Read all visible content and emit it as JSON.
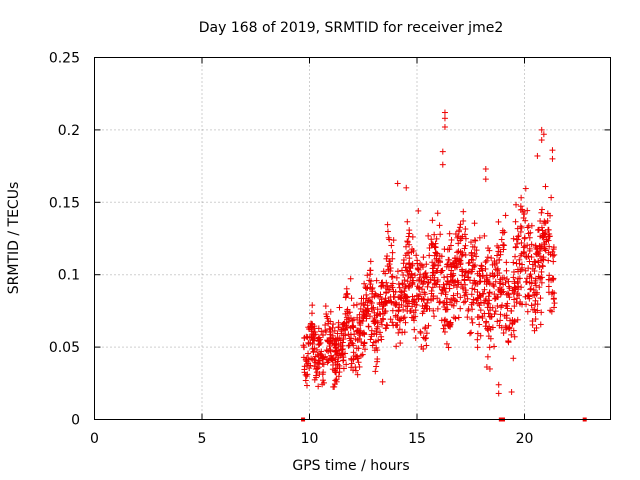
{
  "chart_data": {
    "type": "scatter",
    "title": "Day 168 of 2019, SRMTID for receiver jme2",
    "xlabel": "GPS time / hours",
    "ylabel": "SRMTID / TECUs",
    "xlim": [
      0,
      24
    ],
    "ylim": [
      0,
      0.25
    ],
    "xticks": [
      0,
      5,
      10,
      15,
      20
    ],
    "xtick_labels": [
      "0",
      "5",
      "10",
      "15",
      "20"
    ],
    "yticks": [
      0,
      0.05,
      0.1,
      0.15,
      0.2,
      0.25
    ],
    "ytick_labels": [
      "0",
      "0.05",
      "0.1",
      "0.15",
      "0.2",
      "0.25"
    ],
    "grid": true,
    "marker": "+",
    "color": "#ee0000",
    "series": [
      {
        "name": "SRMTID",
        "segments": [
          {
            "x0": 9.7,
            "x1": 10.5,
            "base": 0.05,
            "amp": 0.02,
            "spread": 0.022
          },
          {
            "x0": 10.5,
            "x1": 11.5,
            "base": 0.05,
            "amp": 0.012,
            "spread": 0.025
          },
          {
            "x0": 11.5,
            "x1": 12.6,
            "base": 0.06,
            "amp": 0.02,
            "spread": 0.028
          },
          {
            "x0": 12.6,
            "x1": 13.6,
            "base": 0.075,
            "amp": 0.02,
            "spread": 0.032
          },
          {
            "x0": 13.6,
            "x1": 15.0,
            "base": 0.09,
            "amp": 0.025,
            "spread": 0.036
          },
          {
            "x0": 15.0,
            "x1": 16.5,
            "base": 0.095,
            "amp": 0.02,
            "spread": 0.038
          },
          {
            "x0": 16.5,
            "x1": 17.8,
            "base": 0.1,
            "amp": 0.02,
            "spread": 0.036
          },
          {
            "x0": 17.8,
            "x1": 18.8,
            "base": 0.085,
            "amp": 0.02,
            "spread": 0.04
          },
          {
            "x0": 18.8,
            "x1": 19.8,
            "base": 0.09,
            "amp": 0.02,
            "spread": 0.042
          },
          {
            "x0": 19.8,
            "x1": 21.4,
            "base": 0.11,
            "amp": 0.025,
            "spread": 0.042
          }
        ],
        "outliers": [
          {
            "x": 16.3,
            "y": 0.212
          },
          {
            "x": 16.3,
            "y": 0.208
          },
          {
            "x": 16.3,
            "y": 0.202
          },
          {
            "x": 16.2,
            "y": 0.185
          },
          {
            "x": 16.2,
            "y": 0.176
          },
          {
            "x": 20.8,
            "y": 0.2
          },
          {
            "x": 20.9,
            "y": 0.197
          },
          {
            "x": 20.8,
            "y": 0.193
          },
          {
            "x": 21.3,
            "y": 0.186
          },
          {
            "x": 21.3,
            "y": 0.18
          },
          {
            "x": 20.6,
            "y": 0.182
          },
          {
            "x": 18.2,
            "y": 0.173
          },
          {
            "x": 18.2,
            "y": 0.166
          },
          {
            "x": 14.1,
            "y": 0.163
          },
          {
            "x": 14.5,
            "y": 0.16
          },
          {
            "x": 18.8,
            "y": 0.024
          },
          {
            "x": 18.8,
            "y": 0.018
          },
          {
            "x": 19.4,
            "y": 0.019
          },
          {
            "x": 13.4,
            "y": 0.026
          },
          {
            "x": 11.2,
            "y": 0.027
          }
        ]
      }
    ],
    "zero_markers": [
      {
        "x": 9.7,
        "y": 0
      },
      {
        "x": 18.9,
        "y": 0
      },
      {
        "x": 19.0,
        "y": 0
      },
      {
        "x": 22.8,
        "y": 0
      }
    ]
  }
}
